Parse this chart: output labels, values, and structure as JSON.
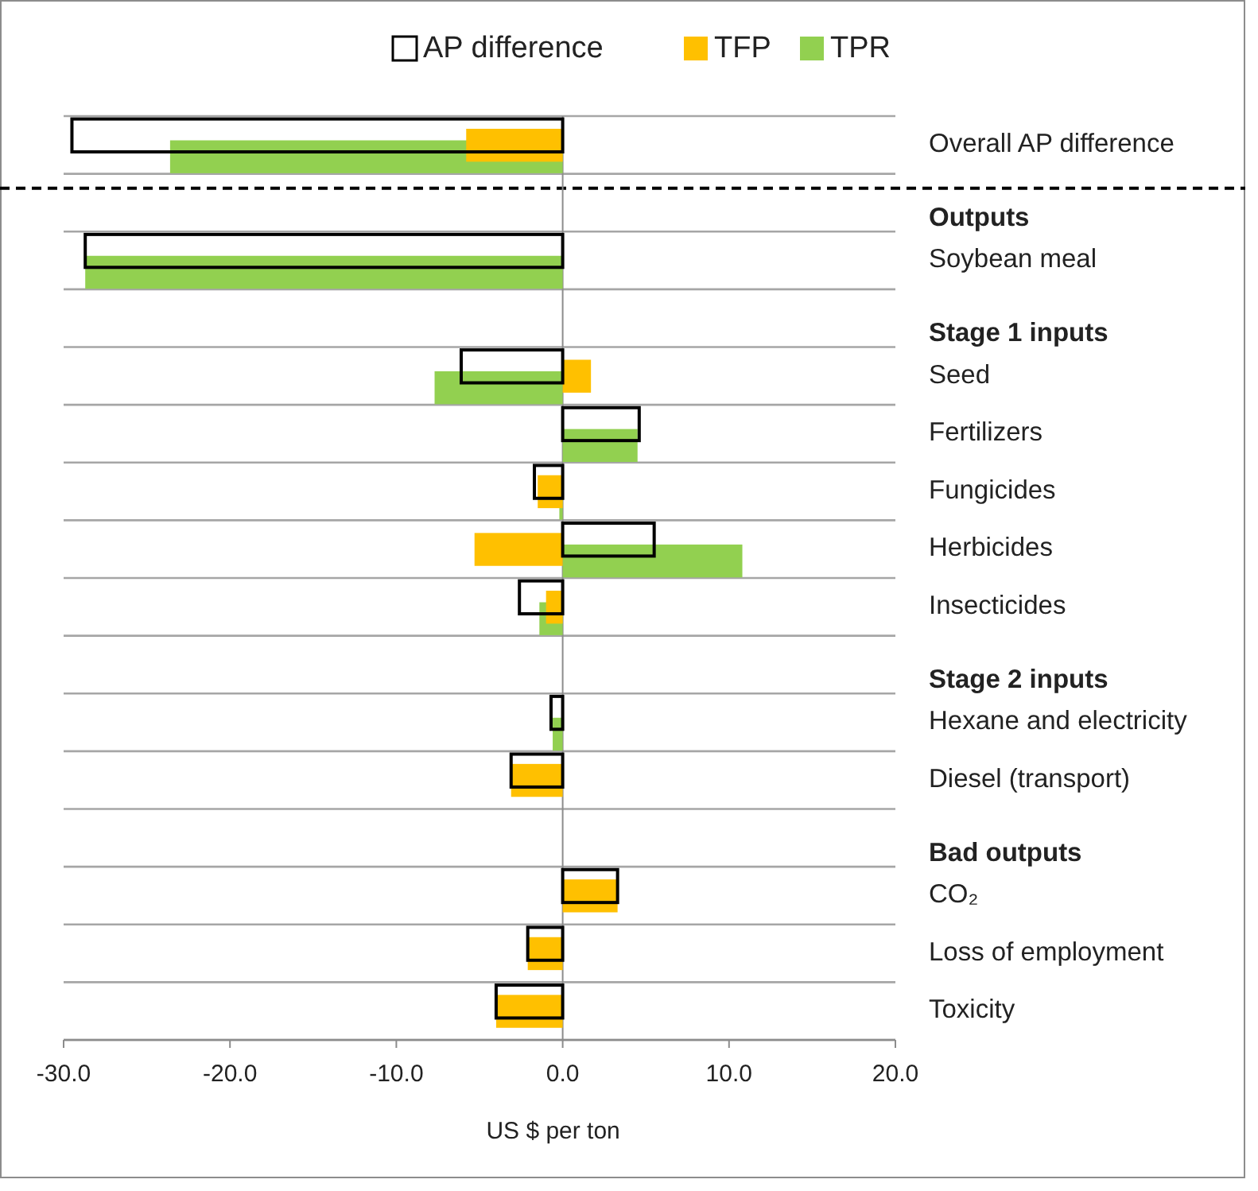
{
  "chart_data": {
    "type": "bar",
    "orientation": "horizontal",
    "xlabel": "US $ per ton",
    "legend": "top",
    "grid": "y",
    "categories": [
      "Overall AP difference",
      "Outputs",
      "Soybean meal",
      "Stage 1 inputs",
      "Seed",
      "Fertilizers",
      "Fungicides",
      "Herbicides",
      "Insecticides",
      "Stage 2 inputs",
      "Hexane and electricity",
      "Diesel (transport)",
      "Bad outputs",
      "CO₂",
      "Loss of employment",
      "Toxicity"
    ],
    "series": [
      {
        "name": "AP difference",
        "color": "#000000",
        "values": [
          -29.5,
          null,
          -28.7,
          null,
          -6.1,
          4.6,
          -1.7,
          5.5,
          -2.6,
          null,
          -0.7,
          -3.1,
          null,
          3.3,
          -2.1,
          -4.0
        ]
      },
      {
        "name": "TFP",
        "color": "#ffc000",
        "values": [
          -5.8,
          null,
          null,
          null,
          1.7,
          null,
          -1.5,
          -5.3,
          -1.0,
          null,
          null,
          -3.1,
          null,
          3.3,
          -2.1,
          -4.0
        ]
      },
      {
        "name": "TPR",
        "color": "#92d050",
        "values": [
          -23.6,
          null,
          -28.7,
          null,
          -7.7,
          4.5,
          -0.2,
          10.8,
          -1.4,
          null,
          -0.6,
          null,
          null,
          null,
          null,
          null
        ]
      }
    ],
    "xlim": [
      -30,
      20
    ],
    "xticks": [
      {
        "value": -30,
        "label": "-30.0"
      },
      {
        "value": -20,
        "label": "-20.0"
      },
      {
        "value": -10,
        "label": "-10.0"
      },
      {
        "value": 0,
        "label": "0.0"
      },
      {
        "value": 10,
        "label": "10.0"
      },
      {
        "value": 20,
        "label": "20.0"
      }
    ],
    "ref_lines": [
      {
        "axis": "y",
        "value": "Outputs",
        "line_style": "dashed",
        "color": "#000000"
      }
    ]
  }
}
